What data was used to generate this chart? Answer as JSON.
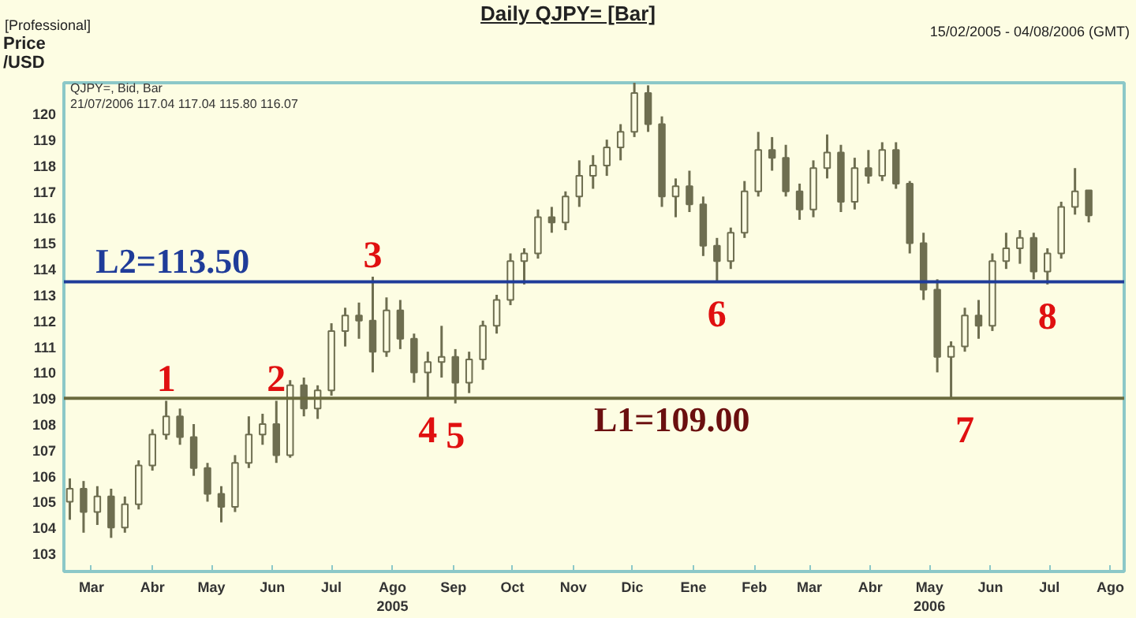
{
  "chart_data": {
    "type": "candlestick",
    "title": "Daily QJPY= [Bar]",
    "subtitle": "15/02/2005 - 04/08/2006 (GMT)",
    "ylabel": "Price /USD",
    "color": "#6e6e50",
    "x": [
      "2005-02-18",
      "2005-02-25",
      "2005-03-04",
      "2005-03-11",
      "2005-03-18",
      "2005-03-25",
      "2005-04-01",
      "2005-04-08",
      "2005-04-15",
      "2005-04-22",
      "2005-04-29",
      "2005-05-06",
      "2005-05-13",
      "2005-05-20",
      "2005-05-27",
      "2005-06-03",
      "2005-06-10",
      "2005-06-17",
      "2005-06-24",
      "2005-07-01",
      "2005-07-08",
      "2005-07-15",
      "2005-07-22",
      "2005-07-29",
      "2005-08-05",
      "2005-08-12",
      "2005-08-19",
      "2005-08-26",
      "2005-09-02",
      "2005-09-09",
      "2005-09-16",
      "2005-09-23",
      "2005-09-30",
      "2005-10-07",
      "2005-10-14",
      "2005-10-21",
      "2005-10-28",
      "2005-11-04",
      "2005-11-11",
      "2005-11-18",
      "2005-11-25",
      "2005-12-02",
      "2005-12-09",
      "2005-12-16",
      "2005-12-23",
      "2005-12-30",
      "2006-01-06",
      "2006-01-13",
      "2006-01-20",
      "2006-01-27",
      "2006-02-03",
      "2006-02-10",
      "2006-02-17",
      "2006-02-24",
      "2006-03-03",
      "2006-03-10",
      "2006-03-17",
      "2006-03-24",
      "2006-03-31",
      "2006-04-07",
      "2006-04-14",
      "2006-04-21",
      "2006-04-28",
      "2006-05-05",
      "2006-05-12",
      "2006-05-19",
      "2006-05-26",
      "2006-06-02",
      "2006-06-09",
      "2006-06-16",
      "2006-06-23",
      "2006-06-30",
      "2006-07-07",
      "2006-07-14",
      "2006-07-21"
    ],
    "ohlc": [
      [
        105.0,
        105.9,
        104.3,
        105.5
      ],
      [
        105.5,
        105.8,
        103.8,
        104.6
      ],
      [
        104.6,
        105.6,
        104.1,
        105.2
      ],
      [
        105.2,
        105.5,
        103.6,
        104.0
      ],
      [
        104.0,
        105.2,
        103.8,
        104.9
      ],
      [
        104.9,
        106.6,
        104.7,
        106.4
      ],
      [
        106.4,
        107.8,
        106.2,
        107.6
      ],
      [
        107.6,
        108.9,
        107.4,
        108.3
      ],
      [
        108.3,
        108.6,
        107.2,
        107.5
      ],
      [
        107.5,
        108.0,
        106.0,
        106.3
      ],
      [
        106.3,
        106.5,
        105.0,
        105.3
      ],
      [
        105.3,
        105.6,
        104.2,
        104.8
      ],
      [
        104.8,
        106.8,
        104.6,
        106.5
      ],
      [
        106.5,
        108.3,
        106.3,
        107.6
      ],
      [
        107.6,
        108.4,
        107.2,
        108.0
      ],
      [
        108.0,
        108.9,
        106.5,
        106.8
      ],
      [
        106.8,
        109.7,
        106.7,
        109.5
      ],
      [
        109.5,
        109.8,
        108.3,
        108.6
      ],
      [
        108.6,
        109.5,
        108.2,
        109.3
      ],
      [
        109.3,
        111.9,
        109.1,
        111.6
      ],
      [
        111.6,
        112.5,
        111.0,
        112.2
      ],
      [
        112.2,
        112.7,
        111.3,
        112.0
      ],
      [
        112.0,
        113.7,
        110.0,
        110.8
      ],
      [
        110.8,
        112.9,
        110.6,
        112.4
      ],
      [
        112.4,
        112.8,
        110.9,
        111.3
      ],
      [
        111.3,
        111.5,
        109.6,
        110.0
      ],
      [
        110.0,
        110.8,
        109.0,
        110.4
      ],
      [
        110.4,
        111.8,
        109.8,
        110.6
      ],
      [
        110.6,
        110.9,
        108.8,
        109.6
      ],
      [
        109.6,
        110.8,
        109.2,
        110.5
      ],
      [
        110.5,
        112.0,
        110.1,
        111.8
      ],
      [
        111.8,
        113.0,
        111.5,
        112.8
      ],
      [
        112.8,
        114.6,
        112.6,
        114.3
      ],
      [
        114.3,
        114.8,
        113.4,
        114.6
      ],
      [
        114.6,
        116.3,
        114.4,
        116.0
      ],
      [
        116.0,
        116.4,
        115.4,
        115.8
      ],
      [
        115.8,
        117.0,
        115.5,
        116.8
      ],
      [
        116.8,
        118.2,
        116.4,
        117.6
      ],
      [
        117.6,
        118.4,
        117.1,
        118.0
      ],
      [
        118.0,
        119.0,
        117.6,
        118.7
      ],
      [
        118.7,
        119.6,
        118.2,
        119.3
      ],
      [
        119.3,
        121.4,
        119.1,
        120.8
      ],
      [
        120.8,
        121.1,
        119.3,
        119.6
      ],
      [
        119.6,
        119.9,
        116.4,
        116.8
      ],
      [
        116.8,
        117.5,
        116.0,
        117.2
      ],
      [
        117.2,
        117.8,
        116.2,
        116.5
      ],
      [
        116.5,
        116.8,
        114.5,
        114.9
      ],
      [
        114.9,
        115.2,
        113.5,
        114.3
      ],
      [
        114.3,
        115.6,
        114.0,
        115.4
      ],
      [
        115.4,
        117.4,
        115.2,
        117.0
      ],
      [
        117.0,
        119.3,
        116.8,
        118.6
      ],
      [
        118.6,
        119.1,
        117.8,
        118.3
      ],
      [
        118.3,
        118.8,
        116.8,
        117.0
      ],
      [
        117.0,
        117.3,
        115.9,
        116.3
      ],
      [
        116.3,
        118.2,
        116.0,
        117.9
      ],
      [
        117.9,
        119.2,
        117.5,
        118.5
      ],
      [
        118.5,
        118.8,
        116.2,
        116.6
      ],
      [
        116.6,
        118.3,
        116.3,
        117.9
      ],
      [
        117.9,
        118.6,
        117.3,
        117.6
      ],
      [
        117.6,
        118.9,
        117.4,
        118.6
      ],
      [
        118.6,
        118.9,
        117.1,
        117.3
      ],
      [
        117.3,
        117.4,
        114.6,
        115.0
      ],
      [
        115.0,
        115.4,
        112.8,
        113.2
      ],
      [
        113.2,
        113.6,
        110.0,
        110.6
      ],
      [
        110.6,
        111.2,
        109.0,
        111.0
      ],
      [
        111.0,
        112.5,
        110.8,
        112.2
      ],
      [
        112.2,
        112.8,
        111.3,
        111.8
      ],
      [
        111.8,
        114.6,
        111.6,
        114.3
      ],
      [
        114.3,
        115.4,
        114.0,
        114.8
      ],
      [
        114.8,
        115.5,
        114.2,
        115.2
      ],
      [
        115.2,
        115.4,
        113.6,
        113.9
      ],
      [
        113.9,
        114.8,
        113.4,
        114.6
      ],
      [
        114.6,
        116.6,
        114.4,
        116.4
      ],
      [
        116.4,
        117.9,
        116.1,
        117.0
      ],
      [
        117.04,
        117.04,
        115.8,
        116.07
      ]
    ],
    "xlim": [
      "2005-02-15",
      "2006-08-08"
    ],
    "ylim": [
      102.3,
      121.2
    ],
    "yticks": [
      103,
      104,
      105,
      106,
      107,
      108,
      109,
      110,
      111,
      112,
      113,
      114,
      115,
      116,
      117,
      118,
      119,
      120
    ],
    "xticks": [
      {
        "value": "2005-03-01",
        "label": "Mar"
      },
      {
        "value": "2005-04-01",
        "label": "Abr"
      },
      {
        "value": "2005-05-01",
        "label": "May"
      },
      {
        "value": "2005-06-01",
        "label": "Jun"
      },
      {
        "value": "2005-07-01",
        "label": "Jul"
      },
      {
        "value": "2005-08-01",
        "label": "Ago\n2005"
      },
      {
        "value": "2005-09-01",
        "label": "Sep"
      },
      {
        "value": "2005-10-01",
        "label": "Oct"
      },
      {
        "value": "2005-11-01",
        "label": "Nov"
      },
      {
        "value": "2005-12-01",
        "label": "Dic"
      },
      {
        "value": "2006-01-01",
        "label": "Ene"
      },
      {
        "value": "2006-02-01",
        "label": "Feb"
      },
      {
        "value": "2006-03-01",
        "label": "Mar"
      },
      {
        "value": "2006-04-01",
        "label": "Abr"
      },
      {
        "value": "2006-05-01",
        "label": "May\n2006"
      },
      {
        "value": "2006-06-01",
        "label": "Jun"
      },
      {
        "value": "2006-07-01",
        "label": "Jul"
      },
      {
        "value": "2006-08-01",
        "label": "Ago"
      }
    ],
    "ref_lines": [
      {
        "axis": "y",
        "value": 109.0,
        "label": "L1=109.00",
        "color": "#6b6b3f"
      },
      {
        "axis": "y",
        "value": 113.5,
        "label": "L2=113.50",
        "color": "#1f3c99"
      }
    ],
    "annotations": [
      "[Professional]",
      "QJPY=, Bid, Bar",
      "21/07/2006 117.04 117.04 115.80 116.07",
      {
        "text": "1",
        "x": "2005-04-08",
        "y": 108.9
      },
      {
        "text": "2",
        "x": "2005-06-03",
        "y": 108.9
      },
      {
        "text": "3",
        "x": "2005-07-22",
        "y": 113.7
      },
      {
        "text": "4",
        "x": "2005-08-19",
        "y": 109.0
      },
      {
        "text": "5",
        "x": "2005-09-02",
        "y": 108.8
      },
      {
        "text": "6",
        "x": "2006-01-13",
        "y": 113.5
      },
      {
        "text": "7",
        "x": "2006-05-19",
        "y": 109.0
      },
      {
        "text": "8",
        "x": "2006-06-30",
        "y": 113.4
      }
    ],
    "grid": false
  }
}
